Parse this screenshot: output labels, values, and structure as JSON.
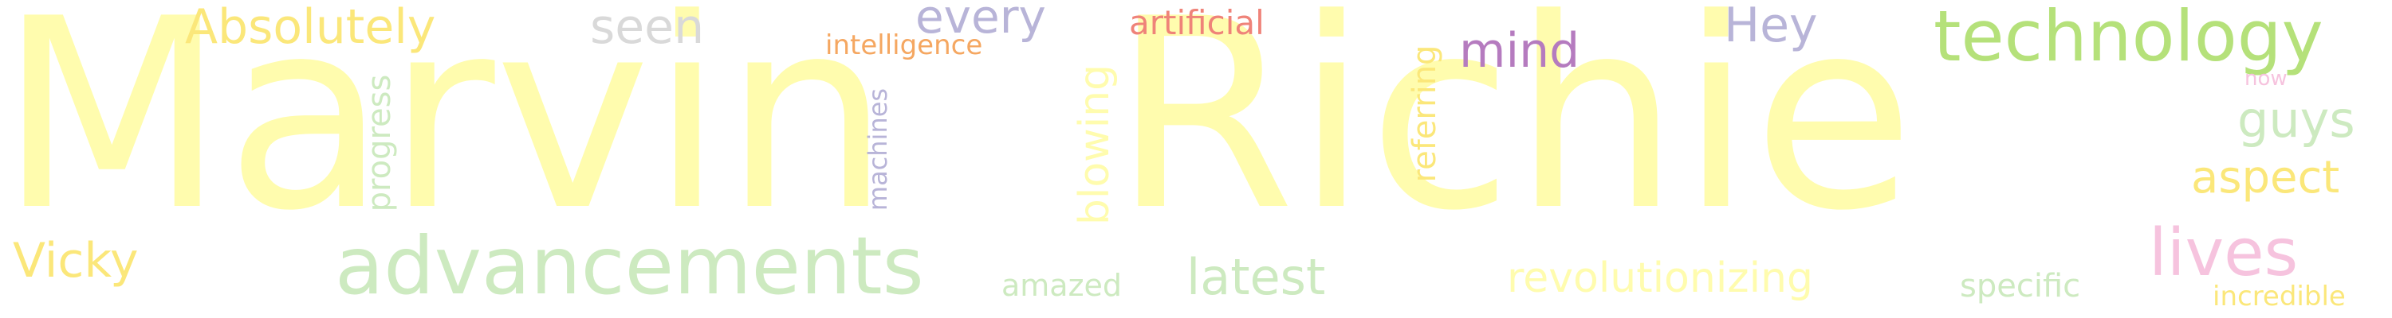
{
  "cloud": {
    "colors": {
      "pale_yellow": "#fffcae",
      "yellow": "#fbe77a",
      "light_green": "#cdeac0",
      "lime_green": "#b5e17a",
      "lavender": "#b8b4d8",
      "purple": "#b57bbf",
      "salmon": "#ef8379",
      "orange": "#f5a761",
      "grey": "#d9d9d9",
      "pink": "#f6c3de"
    },
    "words": {
      "marvin": "Marvin",
      "richie": "Richie",
      "advancements": "advancements",
      "technology": "technology",
      "absolutely": "Absolutely",
      "seen": "seen",
      "every": "every",
      "artificial": "artificial",
      "intelligence": "intelligence",
      "mind": "mind",
      "hey": "Hey",
      "guys": "guys",
      "aspect": "aspect",
      "lives": "lives",
      "now": "now",
      "vicky": "Vicky",
      "latest": "latest",
      "amazed": "amazed",
      "revolutionizing": "revolutionizing",
      "specific": "specific",
      "incredible": "incredible",
      "progress": "progress",
      "machines": "machines",
      "blowing": "blowing",
      "referring": "referring"
    }
  }
}
